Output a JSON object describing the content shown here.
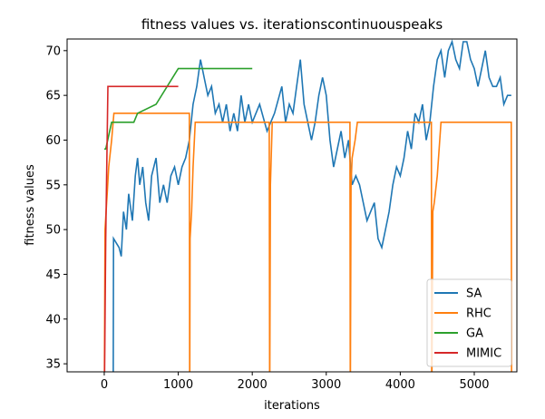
{
  "chart_data": {
    "type": "line",
    "title": "fitness values vs. iterationscontinuouspeaks",
    "xlabel": "iterations",
    "ylabel": "fitness values",
    "xlim": [
      -502,
      5576
    ],
    "ylim": [
      34.1,
      71.3
    ],
    "xticks": [
      0,
      1000,
      2000,
      3000,
      4000,
      5000
    ],
    "yticks": [
      35,
      40,
      45,
      50,
      55,
      60,
      65,
      70
    ],
    "legend": "lower right",
    "series": [
      {
        "name": "SA",
        "color": "#1f77b4",
        "x": [
          120,
          125,
          200,
          230,
          260,
          300,
          330,
          380,
          420,
          450,
          480,
          520,
          560,
          600,
          640,
          700,
          750,
          800,
          850,
          900,
          950,
          1000,
          1050,
          1100,
          1150,
          1200,
          1250,
          1300,
          1350,
          1400,
          1450,
          1500,
          1550,
          1600,
          1650,
          1700,
          1750,
          1800,
          1850,
          1900,
          1950,
          2000,
          2100,
          2200,
          2300,
          2400,
          2450,
          2500,
          2550,
          2600,
          2650,
          2700,
          2750,
          2800,
          2850,
          2900,
          2950,
          3000,
          3050,
          3100,
          3150,
          3200,
          3250,
          3300,
          3350,
          3400,
          3450,
          3500,
          3550,
          3600,
          3650,
          3700,
          3750,
          3800,
          3850,
          3900,
          3950,
          4000,
          4050,
          4100,
          4150,
          4200,
          4250,
          4300,
          4350,
          4400,
          4450,
          4500,
          4550,
          4600,
          4650,
          4700,
          4750,
          4800,
          4850,
          4900,
          4950,
          5000,
          5050,
          5100,
          5150,
          5200,
          5250,
          5300,
          5350,
          5400,
          5450,
          5500
        ],
        "values": [
          30,
          49,
          48,
          47,
          52,
          50,
          54,
          51,
          56,
          58,
          55,
          57,
          53,
          51,
          56,
          58,
          53,
          55,
          53,
          56,
          57,
          55,
          57,
          58,
          60,
          64,
          66,
          69,
          67,
          65,
          66,
          63,
          64,
          62,
          64,
          61,
          63,
          61,
          65,
          62,
          64,
          62,
          64,
          61,
          63,
          66,
          62,
          64,
          63,
          66,
          69,
          64,
          62,
          60,
          62,
          65,
          67,
          65,
          60,
          57,
          59,
          61,
          58,
          60,
          55,
          56,
          55,
          53,
          51,
          52,
          53,
          49,
          48,
          50,
          52,
          55,
          57,
          56,
          58,
          61,
          59,
          63,
          62,
          64,
          60,
          62,
          66,
          69,
          70,
          67,
          70,
          71,
          69,
          68,
          71,
          71,
          69,
          68,
          66,
          68,
          70,
          67,
          66,
          66,
          67,
          64,
          65,
          65
        ]
      },
      {
        "name": "RHC",
        "color": "#ff7f0e",
        "x": [
          0,
          10,
          40,
          60,
          100,
          130,
          1150,
          1155,
          1160,
          1180,
          1200,
          1230,
          2230,
          2235,
          2245,
          2270,
          3320,
          3325,
          3335,
          3350,
          3390,
          3420,
          4420,
          4425,
          4440,
          4460,
          4500,
          4550,
          5500,
          5505
        ],
        "values": [
          30,
          50,
          54,
          57,
          60,
          63,
          63,
          30,
          49,
          52,
          57,
          62,
          62,
          30,
          55,
          62,
          62,
          30,
          55,
          58,
          60,
          62,
          62,
          30,
          52,
          53,
          56,
          62,
          62,
          30
        ]
      },
      {
        "name": "GA",
        "color": "#2ca02c",
        "x": [
          0,
          20,
          100,
          400,
          450,
          700,
          1000,
          2000
        ],
        "values": [
          59,
          59,
          62,
          62,
          63,
          64,
          68,
          68
        ]
      },
      {
        "name": "MIMIC",
        "color": "#d62728",
        "x": [
          0,
          20,
          50,
          1000
        ],
        "values": [
          30,
          49,
          66,
          66
        ]
      }
    ]
  }
}
